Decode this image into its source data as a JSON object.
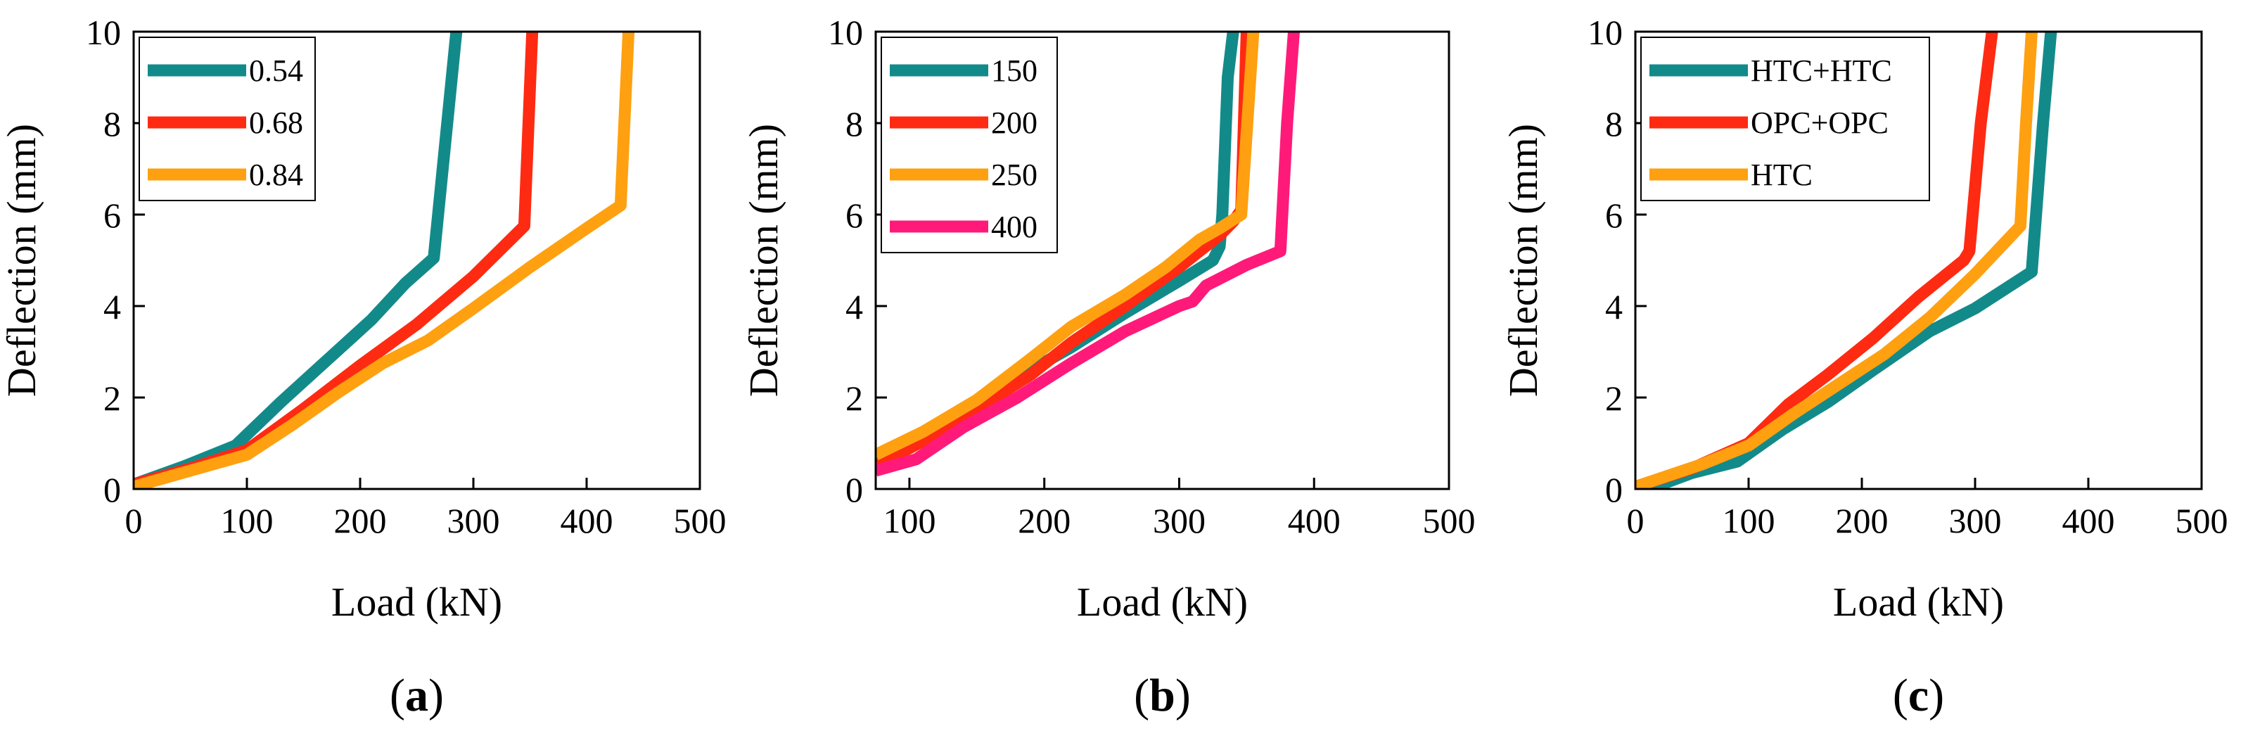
{
  "chart_data": [
    {
      "type": "line",
      "panel_label": "a",
      "xlabel": "Load (kN)",
      "ylabel": "Deflection (mm)",
      "xlim": [
        0,
        500
      ],
      "ylim": [
        0,
        10
      ],
      "xticks": [
        0,
        100,
        200,
        300,
        400,
        500
      ],
      "yticks": [
        0,
        2,
        4,
        6,
        8,
        10
      ],
      "legend_position": "top-left",
      "series": [
        {
          "name": "0.54",
          "color": "#138a8a",
          "x": [
            0,
            45,
            90,
            130,
            170,
            210,
            240,
            265,
            285
          ],
          "y": [
            0.1,
            0.5,
            0.95,
            1.9,
            2.8,
            3.7,
            4.5,
            5.05,
            10
          ]
        },
        {
          "name": "0.68",
          "color": "#ff2a12",
          "x": [
            0,
            50,
            100,
            150,
            200,
            250,
            300,
            345,
            352
          ],
          "y": [
            0.1,
            0.45,
            0.85,
            1.75,
            2.7,
            3.6,
            4.65,
            5.75,
            10
          ]
        },
        {
          "name": "0.84",
          "color": "#ffa010",
          "x": [
            0,
            50,
            100,
            140,
            180,
            220,
            260,
            300,
            350,
            400,
            430,
            437
          ],
          "y": [
            0.05,
            0.4,
            0.75,
            1.4,
            2.1,
            2.75,
            3.25,
            3.95,
            4.85,
            5.7,
            6.2,
            10
          ]
        }
      ]
    },
    {
      "type": "line",
      "panel_label": "b",
      "xlabel": "Load (kN)",
      "ylabel": "Deflection (mm)",
      "xlim": [
        75,
        500
      ],
      "ylim": [
        0,
        10
      ],
      "xticks": [
        100,
        200,
        300,
        400,
        500
      ],
      "yticks": [
        0,
        2,
        4,
        6,
        8,
        10
      ],
      "legend_position": "top-left",
      "series": [
        {
          "name": "150",
          "color": "#138a8a",
          "x": [
            75,
            110,
            150,
            190,
            220,
            260,
            300,
            325,
            330,
            332,
            336,
            340
          ],
          "y": [
            0.55,
            1.1,
            1.8,
            2.6,
            3.1,
            3.85,
            4.55,
            5.0,
            5.3,
            6.0,
            9.0,
            10
          ]
        },
        {
          "name": "200",
          "color": "#ff2a12",
          "x": [
            75,
            110,
            150,
            190,
            220,
            260,
            300,
            330,
            340,
            346,
            350
          ],
          "y": [
            0.5,
            1.05,
            1.75,
            2.5,
            3.2,
            4.0,
            4.85,
            5.55,
            5.85,
            6.1,
            10
          ]
        },
        {
          "name": "250",
          "color": "#ffa010",
          "x": [
            75,
            110,
            150,
            190,
            220,
            260,
            290,
            315,
            330,
            346,
            355
          ],
          "y": [
            0.75,
            1.25,
            1.95,
            2.85,
            3.55,
            4.25,
            4.85,
            5.45,
            5.7,
            6.0,
            10
          ]
        },
        {
          "name": "400",
          "color": "#ff1a7a",
          "x": [
            75,
            105,
            140,
            180,
            220,
            260,
            300,
            310,
            320,
            350,
            375,
            380,
            385
          ],
          "y": [
            0.4,
            0.65,
            1.35,
            2.0,
            2.75,
            3.45,
            4.0,
            4.1,
            4.45,
            4.9,
            5.2,
            8.0,
            10
          ]
        }
      ]
    },
    {
      "type": "line",
      "panel_label": "c",
      "xlabel": "Load (kN)",
      "ylabel": "Deflection (mm)",
      "xlim": [
        0,
        500
      ],
      "ylim": [
        0,
        10
      ],
      "xticks": [
        0,
        100,
        200,
        300,
        400,
        500
      ],
      "yticks": [
        0,
        2,
        4,
        6,
        8,
        10
      ],
      "legend_position": "top-left",
      "series": [
        {
          "name": "HTC+HTC",
          "color": "#138a8a",
          "x": [
            12,
            50,
            90,
            130,
            170,
            210,
            260,
            300,
            350,
            360,
            367
          ],
          "y": [
            0,
            0.35,
            0.6,
            1.3,
            1.9,
            2.6,
            3.45,
            3.95,
            4.75,
            8.0,
            10
          ]
        },
        {
          "name": "OPC+OPC",
          "color": "#ff2a12",
          "x": [
            0,
            50,
            100,
            135,
            170,
            210,
            250,
            290,
            295,
            305,
            315
          ],
          "y": [
            0.05,
            0.45,
            1.0,
            1.85,
            2.5,
            3.3,
            4.2,
            5.0,
            5.2,
            8.0,
            10
          ]
        },
        {
          "name": "HTC",
          "color": "#ffa010",
          "x": [
            0,
            60,
            100,
            140,
            180,
            220,
            260,
            300,
            340,
            345,
            350
          ],
          "y": [
            0.05,
            0.55,
            0.95,
            1.65,
            2.3,
            2.95,
            3.75,
            4.7,
            5.75,
            8.0,
            10
          ]
        }
      ]
    }
  ]
}
